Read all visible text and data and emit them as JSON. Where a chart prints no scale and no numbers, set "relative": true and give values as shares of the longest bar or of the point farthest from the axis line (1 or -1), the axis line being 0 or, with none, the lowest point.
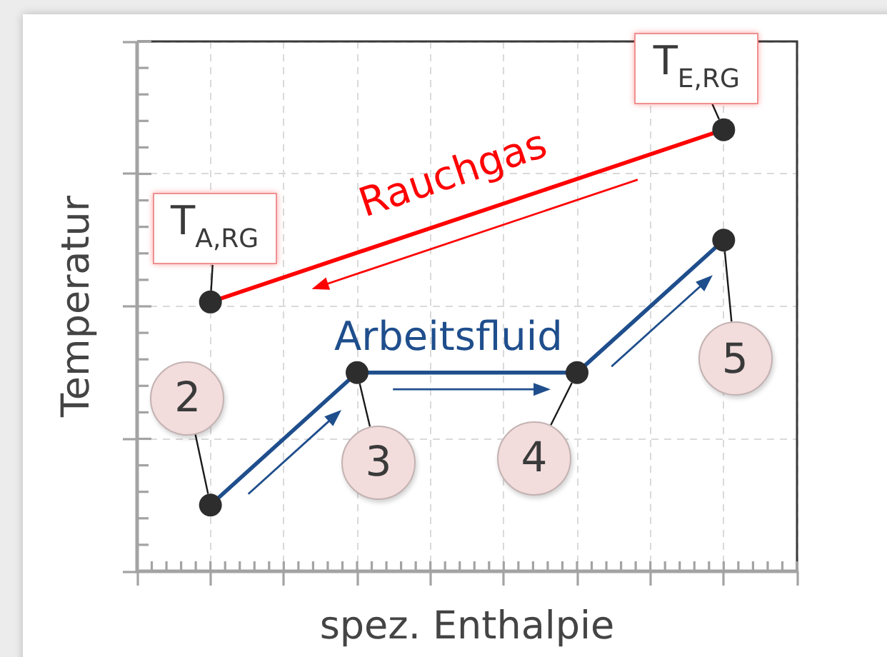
{
  "chart_data": {
    "type": "line",
    "xlabel": "spez. Enthalpie",
    "ylabel": "Temperatur",
    "relative": true,
    "categories": [
      null,
      null,
      null,
      null,
      null,
      null,
      null,
      null,
      null,
      null
    ],
    "series": [
      {
        "name": "Rauchgas",
        "color": "#ff0000",
        "values": [
          null,
          0.61,
          null,
          null,
          null,
          null,
          null,
          null,
          1,
          null
        ]
      },
      {
        "name": "Arbeitsfluid",
        "color": "#1f4e8c",
        "values": [
          null,
          0.15,
          null,
          0.45,
          null,
          null,
          0.45,
          null,
          0.75,
          null
        ]
      }
    ],
    "annotations": [
      "T$_{A,RG}$",
      "T$_{E,RG}$",
      "2",
      "3",
      "4",
      "5"
    ],
    "grid": true,
    "marker": "circle"
  }
}
